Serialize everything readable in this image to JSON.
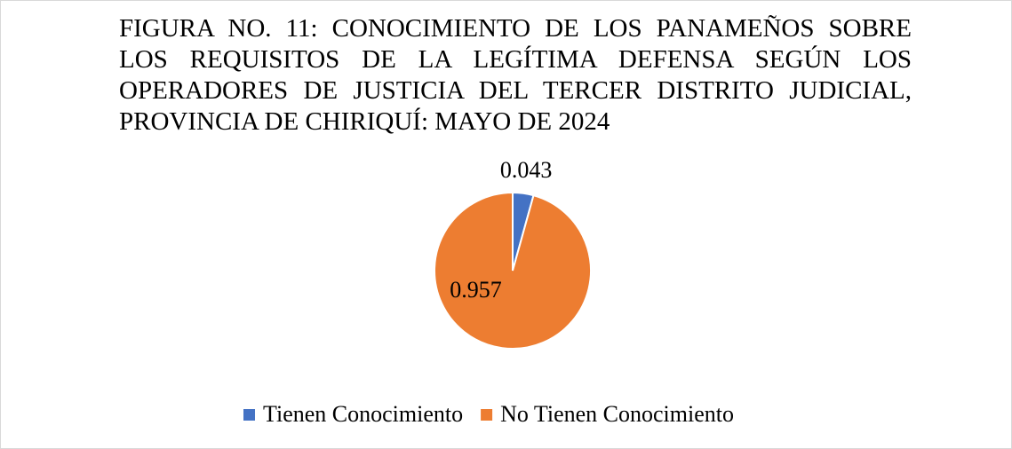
{
  "chart_data": {
    "type": "pie",
    "title": "FIGURA  NO. 11: CONOCIMIENTO DE LOS PANAMEÑOS SOBRE LOS REQUISITOS DE LA LEGÍTIMA DEFENSA SEGÚN LOS OPERADORES DE JUSTICIA DEL TERCER DISTRITO JUDICIAL, PROVINCIA DE CHIRIQUÍ: MAYO DE 2024",
    "categories": [
      "Tienen Conocimiento",
      "No Tienen Conocimiento"
    ],
    "values": [
      0.043,
      0.957
    ],
    "colors": [
      "#4472c4",
      "#ed7d31"
    ],
    "legend": "bottom"
  }
}
